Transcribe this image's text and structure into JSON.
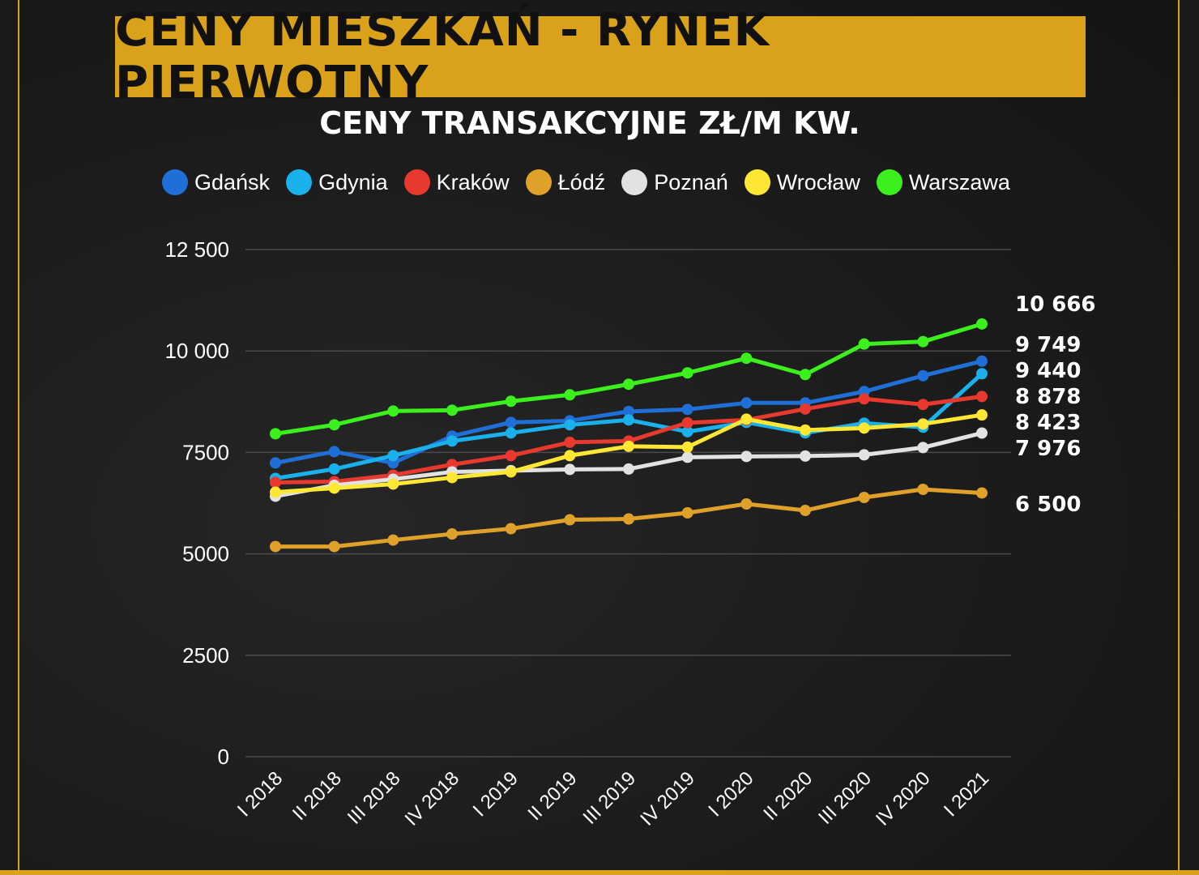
{
  "title": "CENY MIESZKAŃ - RYNEK PIERWOTNY",
  "subtitle": "CENY TRANSAKCYJNE ZŁ/M KW.",
  "colors": {
    "accent": "#d9a21a",
    "background": "#1a1a1a"
  },
  "chart_data": {
    "type": "line",
    "title": "CENY TRANSAKCYJNE ZŁ/M KW.",
    "xlabel": "",
    "ylabel": "",
    "ylim": [
      0,
      12500
    ],
    "yticks": [
      "12 500",
      "10 000",
      "7500",
      "5000",
      "2500",
      "0"
    ],
    "ytick_values": [
      12500,
      10000,
      7500,
      5000,
      2500,
      0
    ],
    "grid": "horizontal",
    "legend_position": "top",
    "categories": [
      "I 2018",
      "II 2018",
      "III 2018",
      "IV 2018",
      "I 2019",
      "II 2019",
      "III 2019",
      "IV 2019",
      "I 2020",
      "II 2020",
      "III 2020",
      "IV 2020",
      "I 2021"
    ],
    "series": [
      {
        "name": "Gdańsk",
        "color": "#1f6fd6",
        "values": [
          7240,
          7520,
          7240,
          7900,
          8240,
          8280,
          8510,
          8560,
          8720,
          8720,
          9000,
          9390,
          9749
        ]
      },
      {
        "name": "Gdynia",
        "color": "#1ab0ec",
        "values": [
          6860,
          7090,
          7420,
          7780,
          7980,
          8180,
          8300,
          8010,
          8240,
          7980,
          8220,
          8120,
          9440
        ]
      },
      {
        "name": "Kraków",
        "color": "#e8392e",
        "values": [
          6760,
          6780,
          6940,
          7200,
          7420,
          7750,
          7780,
          8230,
          8300,
          8570,
          8820,
          8680,
          8878
        ]
      },
      {
        "name": "Łódź",
        "color": "#e0a12a",
        "values": [
          5180,
          5180,
          5340,
          5490,
          5620,
          5840,
          5860,
          6010,
          6230,
          6070,
          6390,
          6590,
          6500
        ]
      },
      {
        "name": "Poznań",
        "color": "#e2e2e2",
        "values": [
          6420,
          6690,
          6840,
          7020,
          7050,
          7080,
          7090,
          7380,
          7400,
          7410,
          7440,
          7620,
          7976
        ]
      },
      {
        "name": "Wrocław",
        "color": "#ffe733",
        "values": [
          6520,
          6620,
          6720,
          6880,
          7020,
          7420,
          7650,
          7630,
          8320,
          8050,
          8100,
          8200,
          8423
        ]
      },
      {
        "name": "Warszawa",
        "color": "#3cf01e",
        "values": [
          7960,
          8180,
          8520,
          8540,
          8760,
          8920,
          9180,
          9460,
          9820,
          9420,
          10170,
          10230,
          10666
        ]
      }
    ],
    "end_labels": [
      "10 666",
      "9 749",
      "9 440",
      "8 878",
      "8 423",
      "7 976",
      "6 500"
    ]
  }
}
